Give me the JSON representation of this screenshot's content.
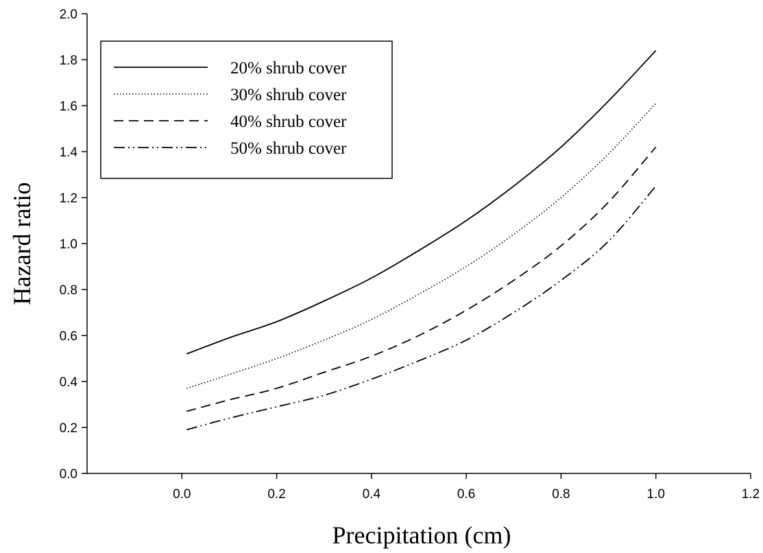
{
  "chart_data": {
    "type": "line",
    "xlabel": "Precipitation (cm)",
    "ylabel": "Hazard ratio",
    "xlim": [
      -0.2,
      1.2
    ],
    "ylim": [
      0.0,
      2.0
    ],
    "xticks": [
      "0.0",
      "0.2",
      "0.4",
      "0.6",
      "0.8",
      "1.0",
      "1.2"
    ],
    "yticks": [
      "0.0",
      "0.2",
      "0.4",
      "0.6",
      "0.8",
      "1.0",
      "1.2",
      "1.4",
      "1.6",
      "1.8",
      "2.0"
    ],
    "grid": false,
    "legend_position": "top-left",
    "series": [
      {
        "name": "20% shrub cover",
        "line_style": "solid",
        "x": [
          0.01,
          0.1,
          0.2,
          0.3,
          0.4,
          0.5,
          0.6,
          0.7,
          0.8,
          0.9,
          1.0
        ],
        "y": [
          0.52,
          0.59,
          0.66,
          0.75,
          0.85,
          0.97,
          1.1,
          1.25,
          1.42,
          1.62,
          1.84
        ]
      },
      {
        "name": "30% shrub cover",
        "line_style": "dotted",
        "x": [
          0.01,
          0.1,
          0.2,
          0.3,
          0.4,
          0.5,
          0.6,
          0.7,
          0.8,
          0.9,
          1.0
        ],
        "y": [
          0.37,
          0.43,
          0.5,
          0.58,
          0.67,
          0.78,
          0.9,
          1.04,
          1.2,
          1.39,
          1.61
        ]
      },
      {
        "name": "40% shrub cover",
        "line_style": "dashed",
        "x": [
          0.01,
          0.1,
          0.2,
          0.3,
          0.4,
          0.5,
          0.6,
          0.7,
          0.8,
          0.9,
          1.0
        ],
        "y": [
          0.27,
          0.32,
          0.37,
          0.44,
          0.51,
          0.6,
          0.71,
          0.84,
          0.99,
          1.18,
          1.42
        ]
      },
      {
        "name": "50% shrub cover",
        "line_style": "dash-dot-dot",
        "x": [
          0.01,
          0.1,
          0.2,
          0.3,
          0.4,
          0.5,
          0.6,
          0.7,
          0.8,
          0.9,
          1.0
        ],
        "y": [
          0.19,
          0.24,
          0.29,
          0.34,
          0.41,
          0.49,
          0.58,
          0.7,
          0.84,
          1.01,
          1.25
        ]
      }
    ]
  }
}
